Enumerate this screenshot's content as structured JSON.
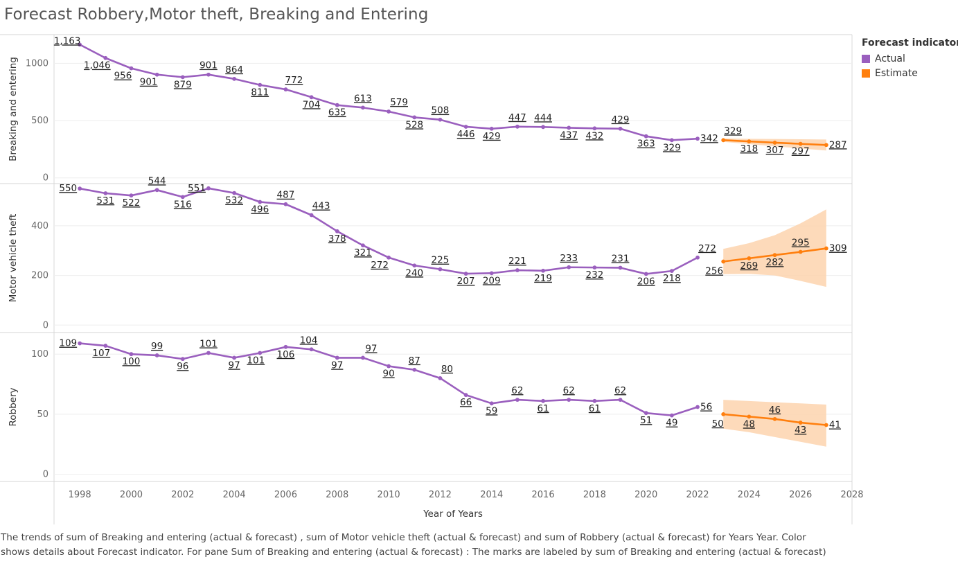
{
  "chart_data": {
    "type": "line",
    "title": "Forecast Robbery,Motor theft, Breaking and Entering",
    "xlabel": "Year of Years",
    "xlim": [
      1997,
      2028
    ],
    "x_ticks": [
      "1998",
      "2000",
      "2002",
      "2004",
      "2006",
      "2008",
      "2010",
      "2012",
      "2014",
      "2016",
      "2018",
      "2020",
      "2022",
      "2024",
      "2026",
      "2028"
    ],
    "legend": {
      "title": "Forecast indicator",
      "position": "right",
      "items": [
        {
          "label": "Actual",
          "color": "#9A5FBE"
        },
        {
          "label": "Estimate",
          "color": "#FF7F0E"
        }
      ]
    },
    "band_color": "#FDD3AE",
    "panes": [
      {
        "ylabel": "Breaking and entering",
        "ylim": [
          -50,
          1250
        ],
        "y_ticks": [
          "0",
          "500",
          "1000"
        ],
        "y_tick_values": [
          0,
          500,
          1000
        ],
        "actual": {
          "x": [
            1998,
            1999,
            2000,
            2001,
            2002,
            2003,
            2004,
            2005,
            2006,
            2007,
            2008,
            2009,
            2010,
            2011,
            2012,
            2013,
            2014,
            2015,
            2016,
            2017,
            2018,
            2019,
            2020,
            2021,
            2022
          ],
          "y": [
            1163,
            1046,
            956,
            901,
            879,
            901,
            864,
            811,
            772,
            704,
            635,
            613,
            579,
            528,
            508,
            446,
            429,
            447,
            444,
            437,
            432,
            429,
            363,
            329,
            342
          ],
          "labels": [
            "1,163",
            "1,046",
            "956",
            "901",
            "879",
            "901",
            "864",
            "811",
            "772",
            "704",
            "635",
            "613",
            "579",
            "528",
            "508",
            "446",
            "429",
            "447",
            "444",
            "437",
            "432",
            "429",
            "363",
            "329",
            "342"
          ]
        },
        "estimate": {
          "x": [
            2023,
            2024,
            2025,
            2026,
            2027
          ],
          "y": [
            329,
            318,
            307,
            297,
            287
          ],
          "labels": [
            "329",
            "318",
            "307",
            "297",
            "287"
          ],
          "upper": [
            344,
            341,
            339,
            337,
            335
          ],
          "lower": [
            314,
            295,
            275,
            257,
            239
          ]
        }
      },
      {
        "ylabel": "Motor vehicle theft",
        "ylim": [
          -30,
          570
        ],
        "y_ticks": [
          "0",
          "200",
          "400"
        ],
        "y_tick_values": [
          0,
          200,
          400
        ],
        "actual": {
          "x": [
            1998,
            1999,
            2000,
            2001,
            2002,
            2003,
            2004,
            2005,
            2006,
            2007,
            2008,
            2009,
            2010,
            2011,
            2012,
            2013,
            2014,
            2015,
            2016,
            2017,
            2018,
            2019,
            2020,
            2021,
            2022
          ],
          "y": [
            550,
            531,
            522,
            544,
            516,
            551,
            532,
            496,
            487,
            443,
            378,
            321,
            272,
            240,
            225,
            207,
            209,
            221,
            219,
            233,
            232,
            231,
            206,
            218,
            272
          ],
          "labels": [
            "550",
            "531",
            "522",
            "544",
            "516",
            "551",
            "532",
            "496",
            "487",
            "443",
            "378",
            "321",
            "272",
            "240",
            "225",
            "207",
            "209",
            "221",
            "219",
            "233",
            "232",
            "231",
            "206",
            "218",
            "272"
          ]
        },
        "estimate": {
          "x": [
            2023,
            2024,
            2025,
            2026,
            2027
          ],
          "y": [
            256,
            269,
            282,
            295,
            309
          ],
          "labels": [
            "256",
            "269",
            "282",
            "295",
            "309"
          ],
          "upper": [
            307,
            330,
            362,
            410,
            466
          ],
          "lower": [
            205,
            206,
            200,
            178,
            154
          ]
        }
      },
      {
        "ylabel": "Robbery",
        "ylim": [
          -6,
          118
        ],
        "y_ticks": [
          "0",
          "50",
          "100"
        ],
        "y_tick_values": [
          0,
          50,
          100
        ],
        "actual": {
          "x": [
            1998,
            1999,
            2000,
            2001,
            2002,
            2003,
            2004,
            2005,
            2006,
            2007,
            2008,
            2009,
            2010,
            2011,
            2012,
            2013,
            2014,
            2015,
            2016,
            2017,
            2018,
            2019,
            2020,
            2021,
            2022
          ],
          "y": [
            109,
            107,
            100,
            99,
            96,
            101,
            97,
            101,
            106,
            104,
            97,
            97,
            90,
            87,
            80,
            66,
            59,
            62,
            61,
            62,
            61,
            62,
            51,
            49,
            56
          ],
          "labels": [
            "109",
            "107",
            "100",
            "99",
            "96",
            "101",
            "97",
            "101",
            "106",
            "104",
            "97",
            "97",
            "90",
            "87",
            "80",
            "66",
            "59",
            "62",
            "61",
            "62",
            "61",
            "62",
            "51",
            "49",
            "56"
          ]
        },
        "estimate": {
          "x": [
            2023,
            2024,
            2025,
            2026,
            2027
          ],
          "y": [
            50,
            48,
            46,
            43,
            41
          ],
          "labels": [
            "50",
            "48",
            "46",
            "43",
            "41"
          ],
          "upper": [
            62,
            61,
            60,
            59,
            58
          ],
          "lower": [
            38,
            35,
            31,
            27,
            23
          ]
        }
      }
    ]
  },
  "caption": {
    "line1": "The trends of sum of Breaking and entering (actual & forecast) , sum of Motor vehicle theft (actual & forecast)  and sum of Robbery (actual & forecast)  for Years Year.  Color",
    "line2": "shows details about Forecast indicator.  For pane Sum of Breaking and entering (actual & forecast) :  The marks are labeled by sum of Breaking and entering (actual & forecast)"
  }
}
